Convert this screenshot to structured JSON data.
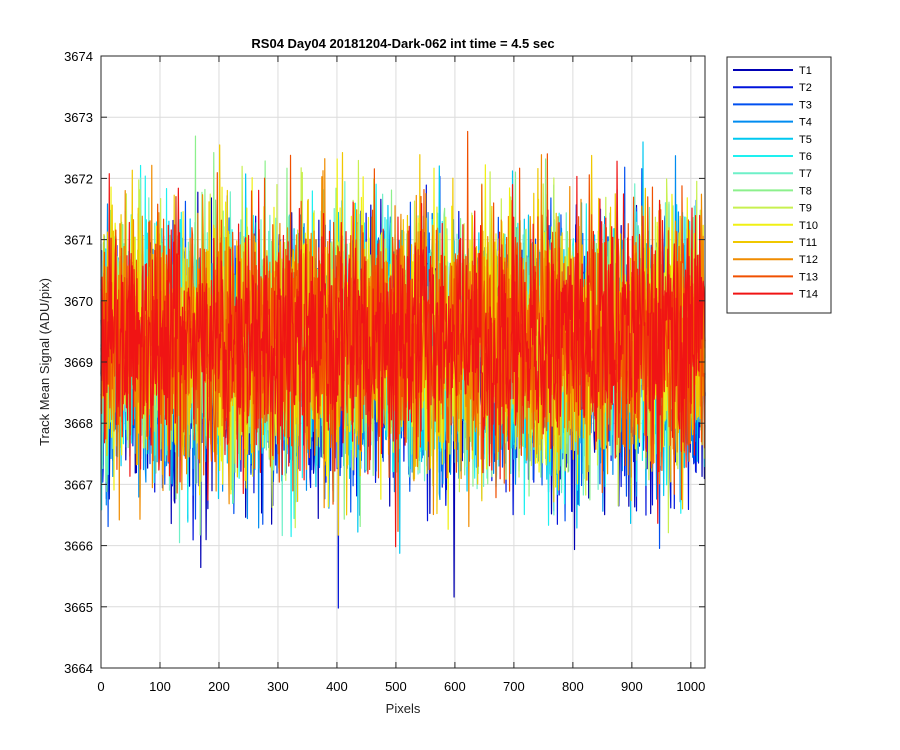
{
  "chart_data": {
    "type": "line",
    "title": "RS04 Day04 20181204-Dark-062 int time = 4.5 sec",
    "xlabel": "Pixels",
    "ylabel": "Track Mean Signal (ADU/pix)",
    "xlim": [
      0,
      1024
    ],
    "ylim": [
      3664,
      3674
    ],
    "xticks": [
      "0",
      "100",
      "200",
      "300",
      "400",
      "500",
      "600",
      "700",
      "800",
      "900",
      "1000"
    ],
    "yticks": [
      "3664",
      "3665",
      "3666",
      "3667",
      "3668",
      "3669",
      "3670",
      "3671",
      "3672",
      "3673",
      "3674"
    ],
    "grid": true,
    "legend_position": "outside-top-right",
    "n_points": 1024,
    "noise_sd": 1.0,
    "series": [
      {
        "name": "T1",
        "color": "#0000b4",
        "mean": 3669.0
      },
      {
        "name": "T2",
        "color": "#0014dc",
        "mean": 3669.05
      },
      {
        "name": "T3",
        "color": "#0050f0",
        "mean": 3669.1
      },
      {
        "name": "T4",
        "color": "#008cf0",
        "mean": 3669.15
      },
      {
        "name": "T5",
        "color": "#00c8f0",
        "mean": 3669.2
      },
      {
        "name": "T6",
        "color": "#1ef0f0",
        "mean": 3669.2
      },
      {
        "name": "T7",
        "color": "#6ef0c8",
        "mean": 3669.25
      },
      {
        "name": "T8",
        "color": "#8cf08c",
        "mean": 3669.3
      },
      {
        "name": "T9",
        "color": "#c8f050",
        "mean": 3669.3
      },
      {
        "name": "T10",
        "color": "#f0f014",
        "mean": 3669.35
      },
      {
        "name": "T11",
        "color": "#f0c800",
        "mean": 3669.35
      },
      {
        "name": "T12",
        "color": "#f08c00",
        "mean": 3669.35
      },
      {
        "name": "T13",
        "color": "#f05000",
        "mean": 3669.4
      },
      {
        "name": "T14",
        "color": "#f01414",
        "mean": 3669.4
      }
    ]
  }
}
